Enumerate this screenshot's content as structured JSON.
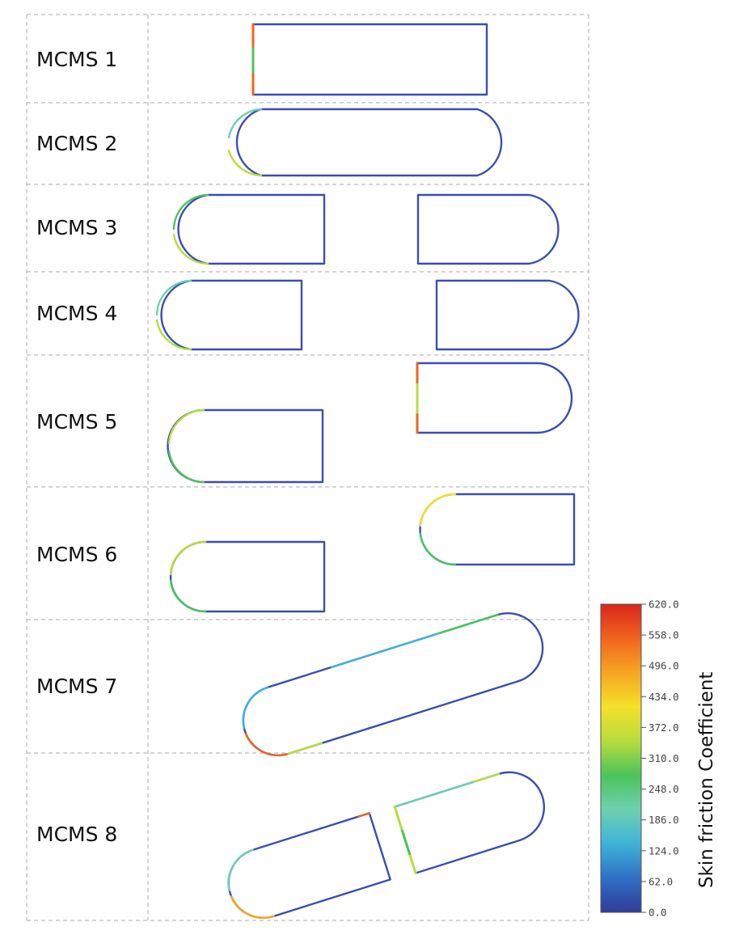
{
  "rows": [
    {
      "label": "MCMS 1"
    },
    {
      "label": "MCMS 2"
    },
    {
      "label": "MCMS 3"
    },
    {
      "label": "MCMS 4"
    },
    {
      "label": "MCMS 5"
    },
    {
      "label": "MCMS 6"
    },
    {
      "label": "MCMS 7"
    },
    {
      "label": "MCMS 8"
    }
  ],
  "colorbar": {
    "title": "Skin friction Coefficient",
    "ticks": [
      "620.0",
      "558.0",
      "496.0",
      "434.0",
      "372.0",
      "310.0",
      "248.0",
      "186.0",
      "124.0",
      "62.0",
      "0.0"
    ],
    "range": [
      0,
      620
    ],
    "colors": [
      "#2f3c9a",
      "#2f6fc4",
      "#3fb3d8",
      "#6fd0b0",
      "#4cc35a",
      "#b7dc3e",
      "#f4e12a",
      "#f6a623",
      "#f0641f",
      "#d9261c"
    ]
  },
  "palette": {
    "outline": "#3a4fb0",
    "grid": "#bbbbbb"
  }
}
